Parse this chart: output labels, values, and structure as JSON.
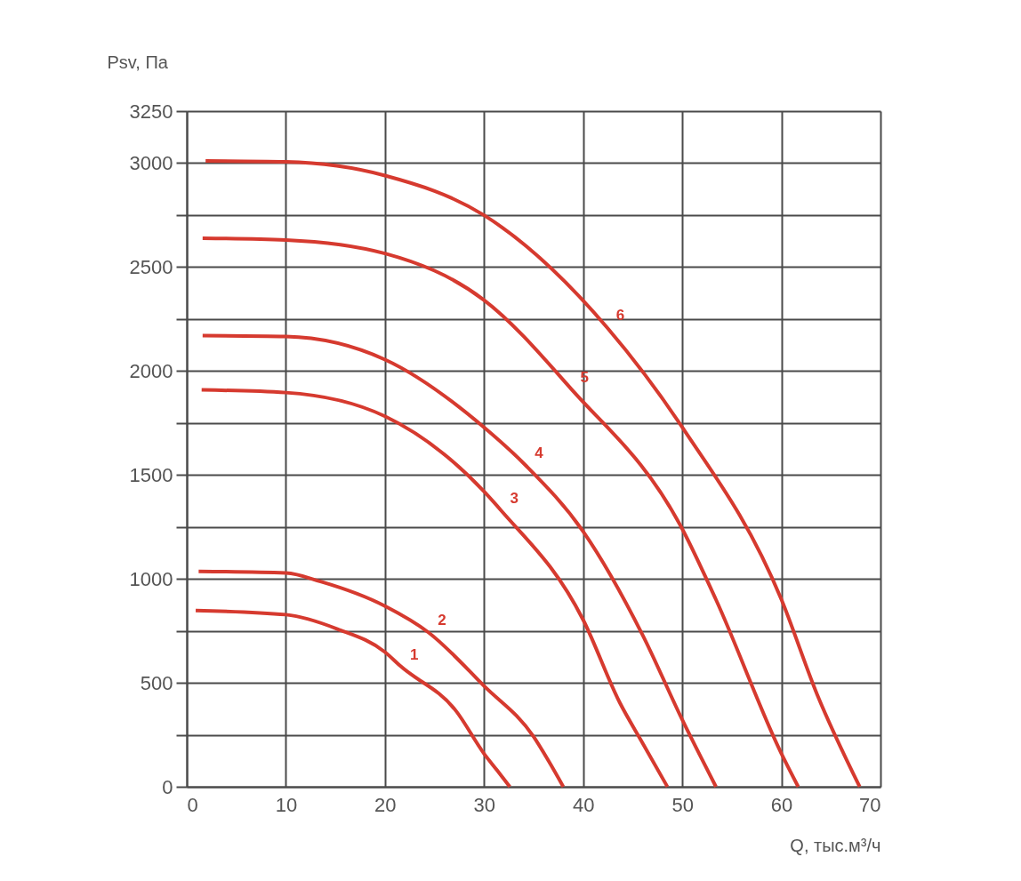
{
  "chart_data": {
    "type": "line",
    "xlabel": "Q, тыс.м³/ч",
    "ylabel": "Psv, Па",
    "xlim": [
      0,
      70
    ],
    "xticks": [
      0,
      10,
      20,
      30,
      40,
      50,
      60,
      70
    ],
    "ylim": [
      0,
      3250
    ],
    "yticks": [
      0,
      {
        "value": 250,
        "label": null
      },
      500,
      {
        "value": 750,
        "label": null
      },
      1000,
      {
        "value": 1250,
        "label": null
      },
      1500,
      {
        "value": 1750,
        "label": null
      },
      2000,
      {
        "value": 2250,
        "label": null
      },
      2500,
      {
        "value": 2750,
        "label": null
      },
      3000,
      3250
    ],
    "grid": true,
    "legend": false,
    "line_style": "solid",
    "marker": "none",
    "series": [
      {
        "name": "1",
        "color": "#d63a2f",
        "x": [
          0.9,
          10,
          15.2,
          20,
          21.6,
          27.2,
          30,
          31.3,
          32.6
        ],
        "values": [
          848,
          828,
          759,
          648,
          579,
          363,
          159,
          80,
          0
        ]
      },
      {
        "name": "2",
        "color": "#d63a2f",
        "x": [
          1.2,
          10,
          13.5,
          20,
          24.4,
          30,
          35,
          36.5,
          38
        ],
        "values": [
          1036,
          1028,
          987,
          869,
          742,
          485,
          241,
          125,
          0
        ]
      },
      {
        "name": "3",
        "color": "#d63a2f",
        "x": [
          1.5,
          10,
          20,
          30,
          31.7,
          40,
          43.7,
          46,
          48.5
        ],
        "values": [
          1909,
          1896,
          1782,
          1420,
          1330,
          803,
          404,
          210,
          0
        ]
      },
      {
        "name": "4",
        "color": "#d63a2f",
        "x": [
          1.6,
          10,
          20,
          30,
          34.2,
          40,
          46,
          50,
          53.4
        ],
        "values": [
          2170,
          2166,
          2055,
          1729,
          1546,
          1228,
          730,
          322,
          0
        ]
      },
      {
        "name": "5",
        "color": "#d63a2f",
        "x": [
          1.6,
          10,
          20,
          30,
          38.8,
          50,
          53.4,
          60,
          61.7
        ],
        "values": [
          2639,
          2630,
          2565,
          2341,
          1913,
          1240,
          900,
          160,
          0
        ]
      },
      {
        "name": "6",
        "color": "#d63a2f",
        "x": [
          1.9,
          10,
          20,
          30,
          42.4,
          50,
          60,
          63.6,
          67.9
        ],
        "values": [
          3010,
          3006,
          2940,
          2749,
          2210,
          1729,
          901,
          445,
          0
        ]
      }
    ]
  }
}
